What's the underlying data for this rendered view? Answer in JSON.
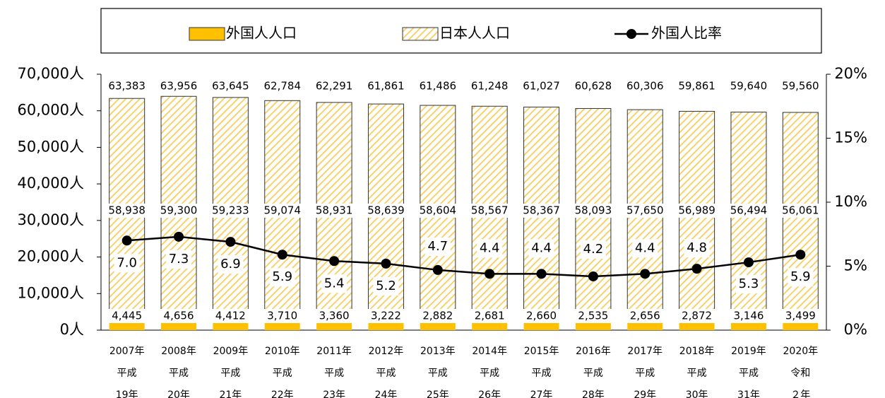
{
  "chart_data": {
    "type": "bar",
    "stacked": true,
    "categories": [
      [
        "2007年",
        "平成",
        "19年"
      ],
      [
        "2008年",
        "平成",
        "20年"
      ],
      [
        "2009年",
        "平成",
        "21年"
      ],
      [
        "2010年",
        "平成",
        "22年"
      ],
      [
        "2011年",
        "平成",
        "23年"
      ],
      [
        "2012年",
        "平成",
        "24年"
      ],
      [
        "2013年",
        "平成",
        "25年"
      ],
      [
        "2014年",
        "平成",
        "26年"
      ],
      [
        "2015年",
        "平成",
        "27年"
      ],
      [
        "2016年",
        "平成",
        "28年"
      ],
      [
        "2017年",
        "平成",
        "29年"
      ],
      [
        "2018年",
        "平成",
        "30年"
      ],
      [
        "2019年",
        "平成",
        "31年"
      ],
      [
        "2020年",
        "令和",
        "２年"
      ]
    ],
    "series": [
      {
        "name": "外国人人口",
        "color": "#ffc000",
        "pattern": "solid",
        "values": [
          4445,
          4656,
          4412,
          3710,
          3360,
          3222,
          2882,
          2681,
          2660,
          2535,
          2656,
          2872,
          3146,
          3499
        ],
        "value_labels": [
          "4,445",
          "4,656",
          "4,412",
          "3,710",
          "3,360",
          "3,222",
          "2,882",
          "2,681",
          "2,660",
          "2,535",
          "2,656",
          "2,872",
          "3,146",
          "3,499"
        ]
      },
      {
        "name": "日本人人口",
        "color": "#ffc000",
        "pattern": "hatch",
        "values": [
          58938,
          59300,
          59233,
          59074,
          58931,
          58639,
          58604,
          58567,
          58367,
          58093,
          57650,
          56989,
          56494,
          56061
        ],
        "value_labels": [
          "58,938",
          "59,300",
          "59,233",
          "59,074",
          "58,931",
          "58,639",
          "58,604",
          "58,567",
          "58,367",
          "58,093",
          "57,650",
          "56,989",
          "56,494",
          "56,061"
        ]
      },
      {
        "name": "外国人比率",
        "type": "line",
        "axis": "y2",
        "color": "#000000",
        "values": [
          7.0,
          7.3,
          6.9,
          5.9,
          5.4,
          5.2,
          4.7,
          4.4,
          4.4,
          4.2,
          4.4,
          4.8,
          5.3,
          5.9
        ],
        "value_labels": [
          "7.0",
          "7.3",
          "6.9",
          "5.9",
          "5.4",
          "5.2",
          "4.7",
          "4.4",
          "4.4",
          "4.2",
          "4.4",
          "4.8",
          "5.3",
          "5.9"
        ]
      }
    ],
    "totals": [
      63383,
      63956,
      63645,
      62784,
      62291,
      61861,
      61486,
      61248,
      61027,
      60628,
      60306,
      59861,
      59640,
      59560
    ],
    "total_labels": [
      "63,383",
      "63,956",
      "63,645",
      "62,784",
      "62,291",
      "61,861",
      "61,486",
      "61,248",
      "61,027",
      "60,628",
      "60,306",
      "59,861",
      "59,640",
      "59,560"
    ],
    "ylim": [
      0,
      70000
    ],
    "yticks": [
      {
        "value": 0,
        "label": "0人"
      },
      {
        "value": 10000,
        "label": "10,000人"
      },
      {
        "value": 20000,
        "label": "20,000人"
      },
      {
        "value": 30000,
        "label": "30,000人"
      },
      {
        "value": 40000,
        "label": "40,000人"
      },
      {
        "value": 50000,
        "label": "50,000人"
      },
      {
        "value": 60000,
        "label": "60,000人"
      },
      {
        "value": 70000,
        "label": "70,000人"
      }
    ],
    "y2lim": [
      0,
      20
    ],
    "y2ticks": [
      {
        "value": 0,
        "label": "0%"
      },
      {
        "value": 5,
        "label": "5%"
      },
      {
        "value": 10,
        "label": "10%"
      },
      {
        "value": 15,
        "label": "15%"
      },
      {
        "value": 20,
        "label": "20%"
      }
    ],
    "legend": "top",
    "grid": false
  }
}
